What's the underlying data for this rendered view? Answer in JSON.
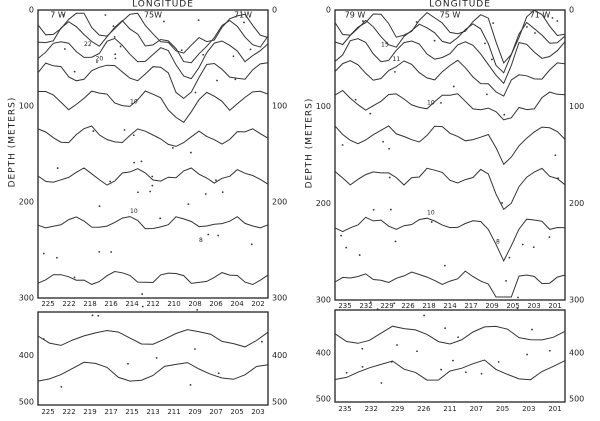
{
  "panels": [
    {
      "title": "LONGITUDE",
      "longitudes": [
        "7 W",
        "75W",
        "71W"
      ],
      "depth_label": "DEPTH (METERS)",
      "depths_left": [
        "0",
        "100",
        "200",
        "300"
      ],
      "depths_right": [
        "0",
        "100",
        "200",
        "300"
      ],
      "upper_stations": [
        "225",
        "222",
        "218",
        "216",
        "214",
        "212",
        "210",
        "208",
        "206",
        "204",
        "202"
      ],
      "lower_depths_left": [
        "400",
        "500"
      ],
      "lower_depths_right": [
        "400",
        "500"
      ],
      "lower_stations": [
        "225",
        "222",
        "219",
        "217",
        "215",
        "213",
        "211",
        "209",
        "207",
        "205",
        "203"
      ],
      "contour_labels": [
        "22",
        "20",
        "10",
        "10",
        "8"
      ]
    },
    {
      "title": "LONGITUDE",
      "longitudes": [
        "79 W",
        "75 W",
        "71 W"
      ],
      "depth_label": "DEPTH (METERS)",
      "depths_left": [
        "0",
        "100",
        "200",
        "300"
      ],
      "depths_right": [
        "0",
        "100",
        "200",
        "300"
      ],
      "upper_stations": [
        "235",
        "232",
        "229",
        "226",
        "218",
        "214",
        "217",
        "209",
        "205",
        "203",
        "201"
      ],
      "lower_depths_left": [
        "400",
        "500"
      ],
      "lower_depths_right": [
        "400",
        "500"
      ],
      "lower_stations": [
        "235",
        "232",
        "229",
        "226",
        "211",
        "207",
        "205",
        "203",
        "201"
      ],
      "contour_labels": [
        "15",
        "11",
        "10",
        "10",
        "8"
      ]
    }
  ]
}
